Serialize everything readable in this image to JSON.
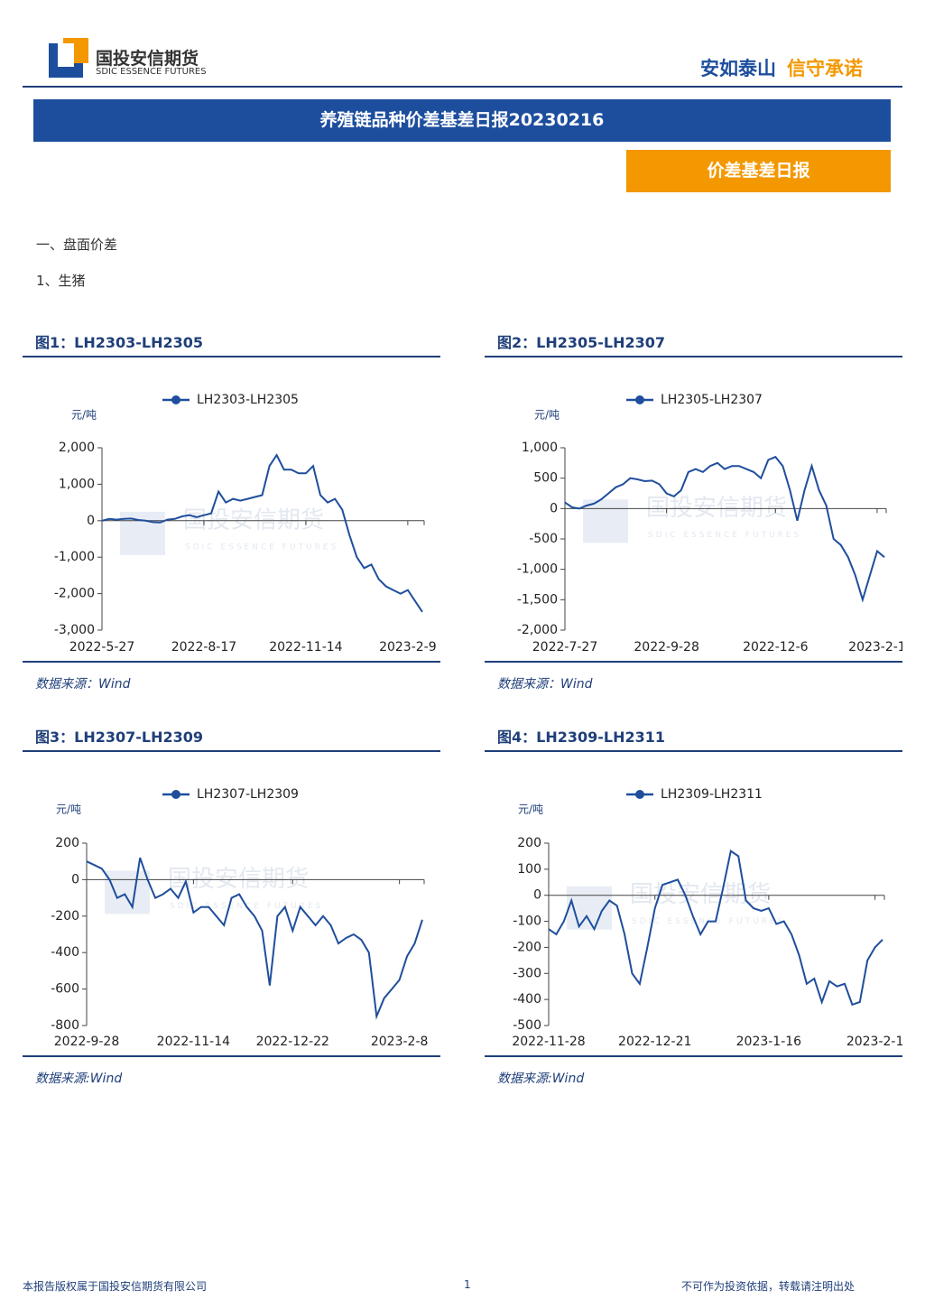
{
  "header": {
    "logo_cn": "国投安信期货",
    "logo_en": "SDIC ESSENCE FUTURES",
    "slogan_1": "安如泰山",
    "slogan_2": "信守承诺"
  },
  "banner": "养殖链品种价差基差日报20230216",
  "tag": "价差基差日报",
  "section": "一、盘面价差",
  "subsection": "1、生猪",
  "watermark": {
    "cn": "国投安信期货",
    "en": "SDIC ESSENCE FUTURES"
  },
  "chart_data": [
    {
      "type": "line",
      "title": "图1：LH2303-LH2305",
      "y_label": "元/吨",
      "source": "数据来源：Wind",
      "categories": [
        "2022-5-27",
        null,
        null,
        null,
        null,
        null,
        null,
        null,
        null,
        null,
        null,
        null,
        null,
        null,
        "2022-8-17",
        null,
        null,
        null,
        null,
        null,
        null,
        null,
        null,
        null,
        null,
        null,
        null,
        null,
        "2022-11-14",
        null,
        null,
        null,
        null,
        null,
        null,
        null,
        null,
        null,
        null,
        null,
        null,
        null,
        "2023-2-9",
        null,
        null
      ],
      "series": [
        {
          "name": "LH2303-LH2305",
          "color": "#1f4e9c",
          "values": [
            0,
            50,
            30,
            50,
            60,
            20,
            0,
            -40,
            -50,
            30,
            50,
            120,
            150,
            100,
            150,
            200,
            800,
            500,
            600,
            550,
            600,
            650,
            700,
            1500,
            1800,
            1400,
            1400,
            1300,
            1300,
            1500,
            700,
            500,
            600,
            300,
            -400,
            -1000,
            -1300,
            -1200,
            -1600,
            -1800,
            -1900,
            -2000,
            -1900,
            -2200,
            -2500
          ]
        }
      ],
      "ylim": [
        -3000,
        2000
      ],
      "yticks": [
        {
          "value": 2000,
          "label": "2,000"
        },
        {
          "value": 1000,
          "label": "1,000"
        },
        0,
        {
          "value": -1000,
          "label": "-1,000"
        },
        {
          "value": -2000,
          "label": "-2,000"
        },
        {
          "value": -3000,
          "label": "-3,000"
        }
      ]
    },
    {
      "type": "line",
      "title": "图2：LH2305-LH2307",
      "y_label": "元/吨",
      "source": "数据来源：Wind",
      "categories": [
        "2022-7-27",
        null,
        null,
        null,
        null,
        null,
        null,
        null,
        null,
        null,
        null,
        null,
        null,
        null,
        "2022-9-28",
        null,
        null,
        null,
        null,
        null,
        null,
        null,
        null,
        null,
        null,
        null,
        null,
        null,
        null,
        "2022-12-6",
        null,
        null,
        null,
        null,
        null,
        null,
        null,
        null,
        null,
        null,
        null,
        null,
        null,
        "2023-2-1",
        null
      ],
      "series": [
        {
          "name": "LH2305-LH2307",
          "color": "#1f4e9c",
          "values": [
            100,
            20,
            0,
            50,
            80,
            150,
            250,
            350,
            400,
            500,
            480,
            450,
            460,
            400,
            250,
            200,
            300,
            600,
            650,
            600,
            700,
            750,
            650,
            700,
            700,
            650,
            600,
            500,
            800,
            850,
            700,
            300,
            -200,
            300,
            700,
            300,
            50,
            -500,
            -600,
            -800,
            -1100,
            -1500,
            -1100,
            -700,
            -800
          ]
        }
      ],
      "ylim": [
        -2000,
        1000
      ],
      "yticks": [
        {
          "value": 1000,
          "label": "1,000"
        },
        500,
        0,
        -500,
        {
          "value": -1000,
          "label": "-1,000"
        },
        {
          "value": -1500,
          "label": "-1,500"
        },
        {
          "value": -2000,
          "label": "-2,000"
        }
      ]
    },
    {
      "type": "line",
      "title": "图3：LH2307-LH2309",
      "y_label": "元/吨",
      "source": "数据来源:Wind",
      "categories": [
        "2022-9-28",
        null,
        null,
        null,
        null,
        null,
        null,
        null,
        null,
        null,
        null,
        null,
        null,
        null,
        "2022-11-14",
        null,
        null,
        null,
        null,
        null,
        null,
        null,
        null,
        null,
        null,
        null,
        null,
        "2022-12-22",
        null,
        null,
        null,
        null,
        null,
        null,
        null,
        null,
        null,
        null,
        null,
        null,
        null,
        "2023-2-8",
        null,
        null,
        null
      ],
      "series": [
        {
          "name": "LH2307-LH2309",
          "color": "#1f4e9c",
          "values": [
            100,
            80,
            60,
            0,
            -100,
            -80,
            -150,
            120,
            0,
            -100,
            -80,
            -50,
            -100,
            -10,
            -180,
            -150,
            -150,
            -200,
            -250,
            -100,
            -80,
            -150,
            -200,
            -280,
            -580,
            -200,
            -150,
            -280,
            -150,
            -200,
            -250,
            -200,
            -250,
            -350,
            -320,
            -300,
            -330,
            -400,
            -750,
            -650,
            -600,
            -550,
            -420,
            -350,
            -220
          ]
        }
      ],
      "ylim": [
        -800,
        200
      ],
      "yticks": [
        200,
        0,
        -200,
        -400,
        -600,
        -800
      ]
    },
    {
      "type": "line",
      "title": "图4：LH2309-LH2311",
      "y_label": "元/吨",
      "source": "数据来源:Wind",
      "categories": [
        "2022-11-28",
        null,
        null,
        null,
        null,
        null,
        null,
        null,
        null,
        null,
        null,
        null,
        null,
        null,
        "2022-12-21",
        null,
        null,
        null,
        null,
        null,
        null,
        null,
        null,
        null,
        null,
        null,
        null,
        null,
        null,
        "2023-1-16",
        null,
        null,
        null,
        null,
        null,
        null,
        null,
        null,
        null,
        null,
        null,
        null,
        null,
        "2023-2-1",
        null
      ],
      "series": [
        {
          "name": "LH2309-LH2311",
          "color": "#1f4e9c",
          "values": [
            -130,
            -150,
            -100,
            -20,
            -120,
            -80,
            -130,
            -60,
            -20,
            -40,
            -150,
            -300,
            -340,
            -200,
            -50,
            40,
            50,
            60,
            0,
            -80,
            -150,
            -100,
            -100,
            30,
            170,
            150,
            -20,
            -50,
            -60,
            -50,
            -110,
            -100,
            -150,
            -230,
            -340,
            -320,
            -410,
            -330,
            -350,
            -340,
            -420,
            -410,
            -250,
            -200,
            -170
          ]
        }
      ],
      "ylim": [
        -500,
        200
      ],
      "yticks": [
        200,
        100,
        0,
        -100,
        -200,
        -300,
        -400,
        -500
      ]
    }
  ],
  "footer": {
    "left": "本报告版权属于国投安信期货有限公司",
    "page": "1",
    "right": "不可作为投资依据，转载请注明出处"
  }
}
